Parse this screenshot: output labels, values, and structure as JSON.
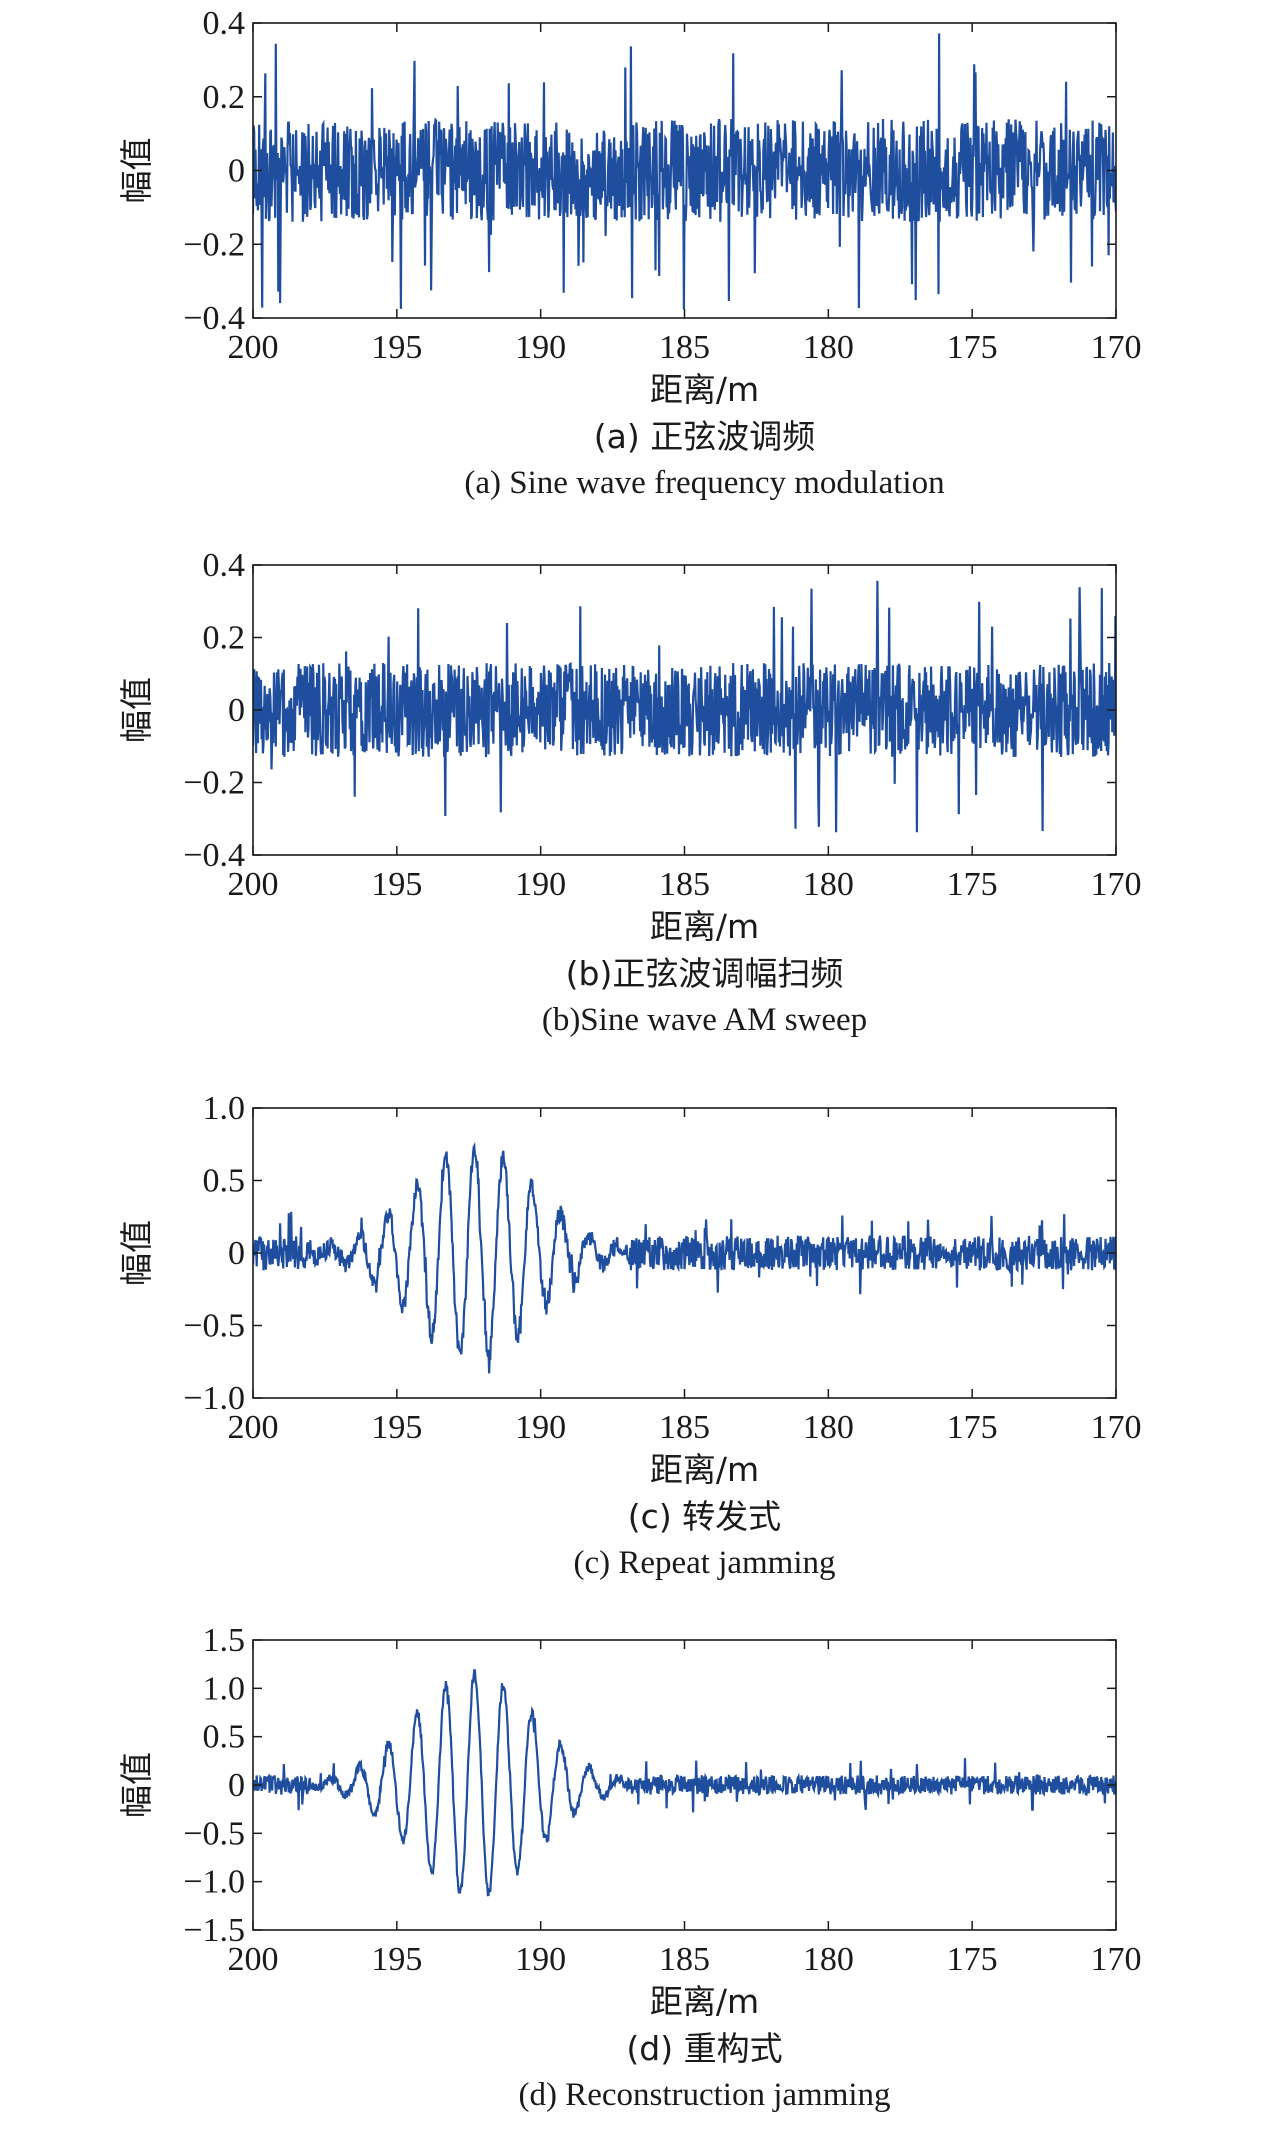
{
  "chart_data": [
    {
      "type": "line",
      "xlabel": "距离/m",
      "ylabel": "幅值",
      "caption_cn": "(a) 正弦波调频",
      "caption_en": "(a) Sine wave frequency modulation",
      "xlim": [
        200,
        170
      ],
      "ylim": [
        -0.4,
        0.4
      ],
      "xticks": [
        "200",
        "195",
        "190",
        "185",
        "180",
        "175",
        "170"
      ],
      "yticks": [
        "0.4",
        "0.2",
        "0",
        "−0.2",
        "−0.4"
      ],
      "yticks_values": [
        0.4,
        0.2,
        0,
        -0.2,
        -0.4
      ],
      "color": "#1f4e9e",
      "signal": {
        "kind": "noise",
        "noise_amp": 0.14,
        "spike_max": 0.38,
        "burst": null
      }
    },
    {
      "type": "line",
      "xlabel": "距离/m",
      "ylabel": "幅值",
      "caption_cn": "(b)正弦波调幅扫频",
      "caption_en": "(b)Sine wave AM sweep",
      "xlim": [
        200,
        170
      ],
      "ylim": [
        -0.4,
        0.4
      ],
      "xticks": [
        "200",
        "195",
        "190",
        "185",
        "180",
        "175",
        "170"
      ],
      "yticks": [
        "0.4",
        "0.2",
        "0",
        "−0.2",
        "−0.4"
      ],
      "yticks_values": [
        0.4,
        0.2,
        0,
        -0.2,
        -0.4
      ],
      "color": "#1f4e9e",
      "signal": {
        "kind": "noise",
        "noise_amp": 0.13,
        "spike_max": 0.36,
        "burst": null
      }
    },
    {
      "type": "line",
      "xlabel": "距离/m",
      "ylabel": "幅值",
      "caption_cn": "(c) 转发式",
      "caption_en": "(c) Repeat jamming",
      "xlim": [
        200,
        170
      ],
      "ylim": [
        -1.0,
        1.0
      ],
      "xticks": [
        "200",
        "195",
        "190",
        "185",
        "180",
        "175",
        "170"
      ],
      "yticks": [
        "1.0",
        "0.5",
        "0",
        "−0.5",
        "−1.0"
      ],
      "yticks_values": [
        1.0,
        0.5,
        0,
        -0.5,
        -1.0
      ],
      "color": "#1f4e9e",
      "signal": {
        "kind": "burst",
        "noise_amp": 0.12,
        "spike_max": 0.3,
        "burst": {
          "start": 198,
          "end": 187,
          "center": 192.3,
          "peak": 0.72,
          "period": 1.0
        }
      }
    },
    {
      "type": "line",
      "xlabel": "距离/m",
      "ylabel": "幅值",
      "caption_cn": "(d) 重构式",
      "caption_en": "(d) Reconstruction jamming",
      "xlim": [
        200,
        170
      ],
      "ylim": [
        -1.5,
        1.5
      ],
      "xticks": [
        "200",
        "195",
        "190",
        "185",
        "180",
        "175",
        "170"
      ],
      "yticks": [
        "1.5",
        "1.0",
        "0.5",
        "0",
        "−0.5",
        "−1.0",
        "−1.5"
      ],
      "yticks_values": [
        1.5,
        1.0,
        0.5,
        0,
        -0.5,
        -1.0,
        -1.5
      ],
      "color": "#1f4e9e",
      "signal": {
        "kind": "burst",
        "noise_amp": 0.1,
        "spike_max": 0.3,
        "burst": {
          "start": 198,
          "end": 187,
          "center": 192.3,
          "peak": 1.15,
          "period": 1.0
        }
      }
    }
  ]
}
